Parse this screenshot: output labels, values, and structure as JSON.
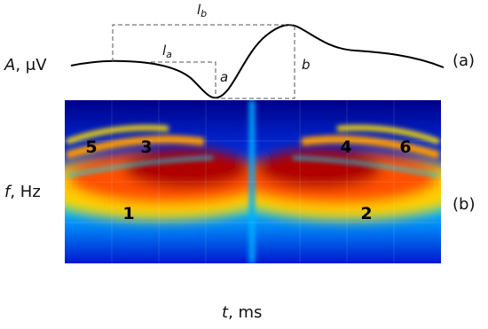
{
  "panel_a": {
    "y_label": {
      "symbol": "A",
      "unit": ", μV"
    },
    "tag": "(a)",
    "annotations": {
      "l_b": {
        "main": "l",
        "sub": "b"
      },
      "l_a": {
        "main": "l",
        "sub": "a"
      },
      "a": "a",
      "b": "b"
    }
  },
  "panel_b": {
    "y_label": {
      "symbol": "f",
      "unit": ", Hz"
    },
    "tag": "(b)",
    "region_labels": [
      "1",
      "2",
      "3",
      "4",
      "5",
      "6"
    ]
  },
  "x_label": {
    "symbol": "t",
    "unit": ", ms"
  }
}
